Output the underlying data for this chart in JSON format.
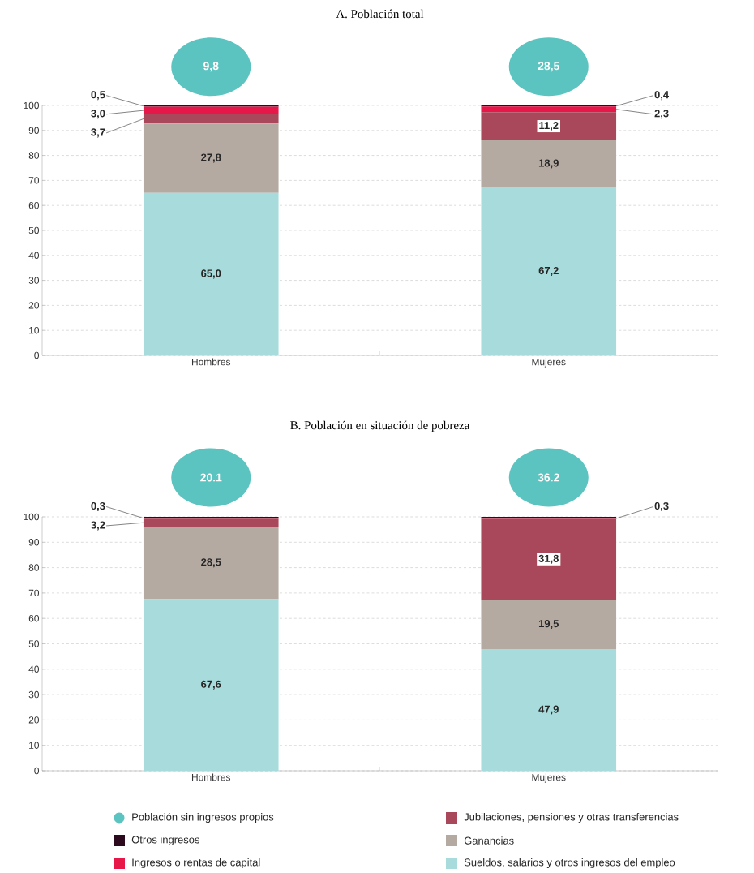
{
  "chart_data": [
    {
      "type": "bar",
      "title": "A. Población total",
      "stacked": true,
      "categories": [
        "Hombres",
        "Mujeres"
      ],
      "ylim": [
        0,
        100
      ],
      "yticks": [
        0,
        10,
        20,
        30,
        40,
        50,
        60,
        70,
        80,
        90,
        100
      ],
      "grid": "y",
      "legend": false,
      "annotations": [
        "9,8",
        "28,5"
      ],
      "series": [
        {
          "color": "#a8dcdc",
          "values": [
            65.0,
            67.2
          ],
          "value_labels": [
            "65,0",
            "67,2"
          ]
        },
        {
          "color": "#b5aaa2",
          "values": [
            27.8,
            18.9
          ],
          "value_labels": [
            "27,8",
            "18,9"
          ]
        },
        {
          "color": "#a8485a",
          "values": [
            3.7,
            11.2
          ],
          "value_labels": [
            "3,7",
            "11,2"
          ]
        },
        {
          "color": "#e8174a",
          "values": [
            3.0,
            2.3
          ],
          "value_labels": [
            "3,0",
            "2,3"
          ]
        },
        {
          "color": "#2d0a1e",
          "values": [
            0.5,
            0.4
          ],
          "value_labels": [
            "0,5",
            "0,4"
          ]
        }
      ]
    },
    {
      "type": "bar",
      "title": "B. Población en situación de pobreza",
      "stacked": true,
      "categories": [
        "Hombres",
        "Mujeres"
      ],
      "ylim": [
        0,
        100
      ],
      "yticks": [
        0,
        10,
        20,
        30,
        40,
        50,
        60,
        70,
        80,
        90,
        100
      ],
      "grid": "y",
      "legend": "bottom",
      "annotations": [
        "20.1",
        "36.2",
        "Población sin ingresos propios"
      ],
      "series": [
        {
          "name": "Sueldos, salarios y otros ingresos del empleo",
          "color": "#a8dcdc",
          "values": [
            67.6,
            47.9
          ],
          "value_labels": [
            "67,6",
            "47,9"
          ]
        },
        {
          "name": "Ganancias",
          "color": "#b5aaa2",
          "values": [
            28.5,
            19.5
          ],
          "value_labels": [
            "28,5",
            "19,5"
          ]
        },
        {
          "name": "Jubilaciones, pensiones y otras transferencias",
          "color": "#a8485a",
          "values": [
            3.2,
            31.8
          ],
          "value_labels": [
            "3,2",
            "31,8"
          ]
        },
        {
          "name": "Ingresos o rentas de capital",
          "color": "#e8174a",
          "values": [
            0.3,
            0.3
          ],
          "value_labels": [
            "0,3",
            "0,3"
          ]
        },
        {
          "name": "Otros ingresos",
          "color": "#2d0a1e",
          "values": [
            0.4,
            0.5
          ],
          "value_labels": [
            null,
            null
          ]
        }
      ]
    }
  ]
}
